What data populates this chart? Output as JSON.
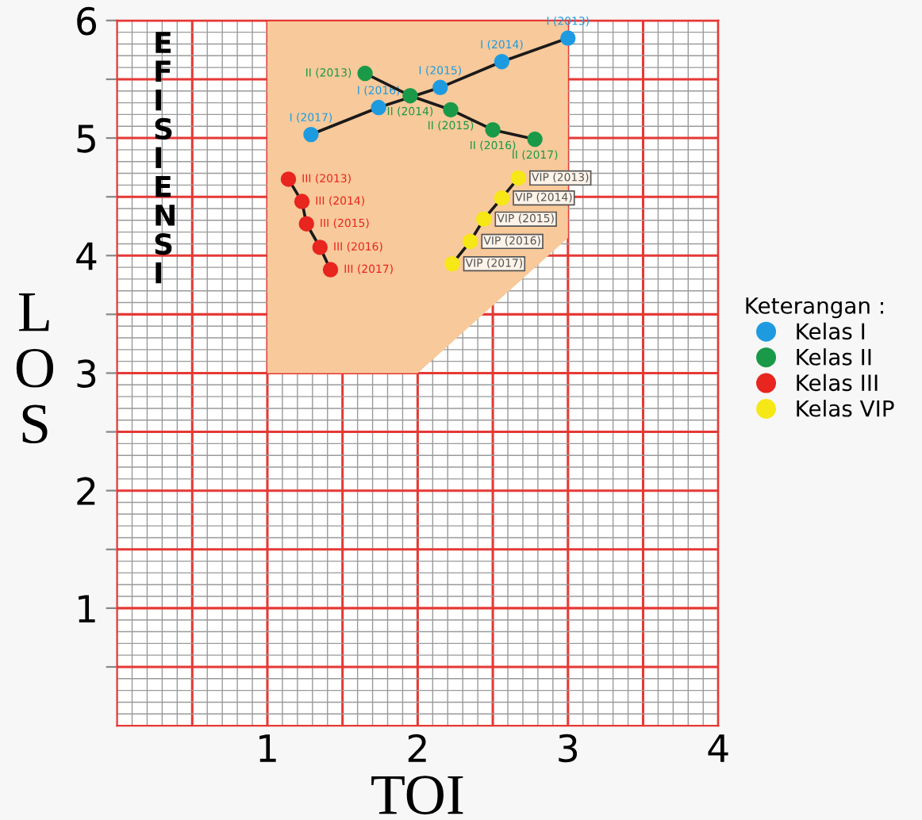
{
  "chart_data": {
    "type": "line",
    "xlabel": "TOI",
    "ylabel": "L\nO\nS",
    "legend_title": "Keterangan :",
    "annotations": [
      "EFISIENSI",
      {
        "text": "I (2013)",
        "x": 3.0,
        "y": 5.85
      },
      {
        "text": "I (2014)",
        "x": 2.56,
        "y": 5.65
      },
      {
        "text": "I (2015)",
        "x": 2.15,
        "y": 5.43
      },
      {
        "text": "I (2016)",
        "x": 1.74,
        "y": 5.26
      },
      {
        "text": "I (2017)",
        "x": 1.29,
        "y": 5.03
      },
      {
        "text": "II (2013)",
        "x": 1.65,
        "y": 5.55
      },
      {
        "text": "II (2014)",
        "x": 1.95,
        "y": 5.36
      },
      {
        "text": "II (2015)",
        "x": 2.22,
        "y": 5.24
      },
      {
        "text": "II (2016)",
        "x": 2.5,
        "y": 5.07
      },
      {
        "text": "II (2017)",
        "x": 2.78,
        "y": 4.99
      },
      {
        "text": "III (2013)",
        "x": 1.14,
        "y": 4.65
      },
      {
        "text": "III (2014)",
        "x": 1.23,
        "y": 4.46
      },
      {
        "text": "III (2015)",
        "x": 1.26,
        "y": 4.27
      },
      {
        "text": "III (2016)",
        "x": 1.35,
        "y": 4.07
      },
      {
        "text": "III (2017)",
        "x": 1.42,
        "y": 3.88
      },
      {
        "text": "VIP (2013)",
        "x": 2.67,
        "y": 4.66
      },
      {
        "text": "VIP (2014)",
        "x": 2.56,
        "y": 4.49
      },
      {
        "text": "VIP (2015)",
        "x": 2.44,
        "y": 4.31
      },
      {
        "text": "VIP (2016)",
        "x": 2.35,
        "y": 4.12
      },
      {
        "text": "VIP (2017)",
        "x": 2.23,
        "y": 3.93
      }
    ],
    "xlim": [
      0,
      4
    ],
    "ylim": [
      0,
      6
    ],
    "xticks": [
      {
        "value": 0.5,
        "label": null
      },
      1,
      {
        "value": 1.5,
        "label": null
      },
      2,
      {
        "value": 2.5,
        "label": null
      },
      3,
      {
        "value": 3.5,
        "label": null
      },
      4
    ],
    "yticks": [
      {
        "value": 0.5,
        "label": null
      },
      1,
      {
        "value": 1.5,
        "label": null
      },
      2,
      {
        "value": 2.5,
        "label": null
      },
      3,
      {
        "value": 3.5,
        "label": null
      },
      4,
      {
        "value": 4.5,
        "label": null
      },
      5,
      {
        "value": 5.5,
        "label": null
      },
      6
    ],
    "grid": true,
    "legend": "right",
    "marker": "circle",
    "line_style": "solid",
    "series": [
      {
        "name": "Kelas I",
        "color": "#1e9be0",
        "x": [
          3.0,
          2.56,
          2.15,
          1.74,
          1.29
        ],
        "values": [
          5.85,
          5.65,
          5.43,
          5.26,
          5.03
        ]
      },
      {
        "name": "Kelas II",
        "color": "#1a9a48",
        "x": [
          1.65,
          1.95,
          2.22,
          2.5,
          2.78
        ],
        "values": [
          5.55,
          5.36,
          5.24,
          5.07,
          4.99
        ]
      },
      {
        "name": "Kelas III",
        "color": "#e8251f",
        "x": [
          1.14,
          1.23,
          1.26,
          1.35,
          1.42
        ],
        "values": [
          4.65,
          4.46,
          4.27,
          4.07,
          3.88
        ]
      },
      {
        "name": "Kelas VIP",
        "color": "#f5e816",
        "x": [
          2.67,
          2.56,
          2.44,
          2.35,
          2.23
        ],
        "values": [
          4.66,
          4.49,
          4.31,
          4.12,
          3.93
        ]
      }
    ]
  }
}
